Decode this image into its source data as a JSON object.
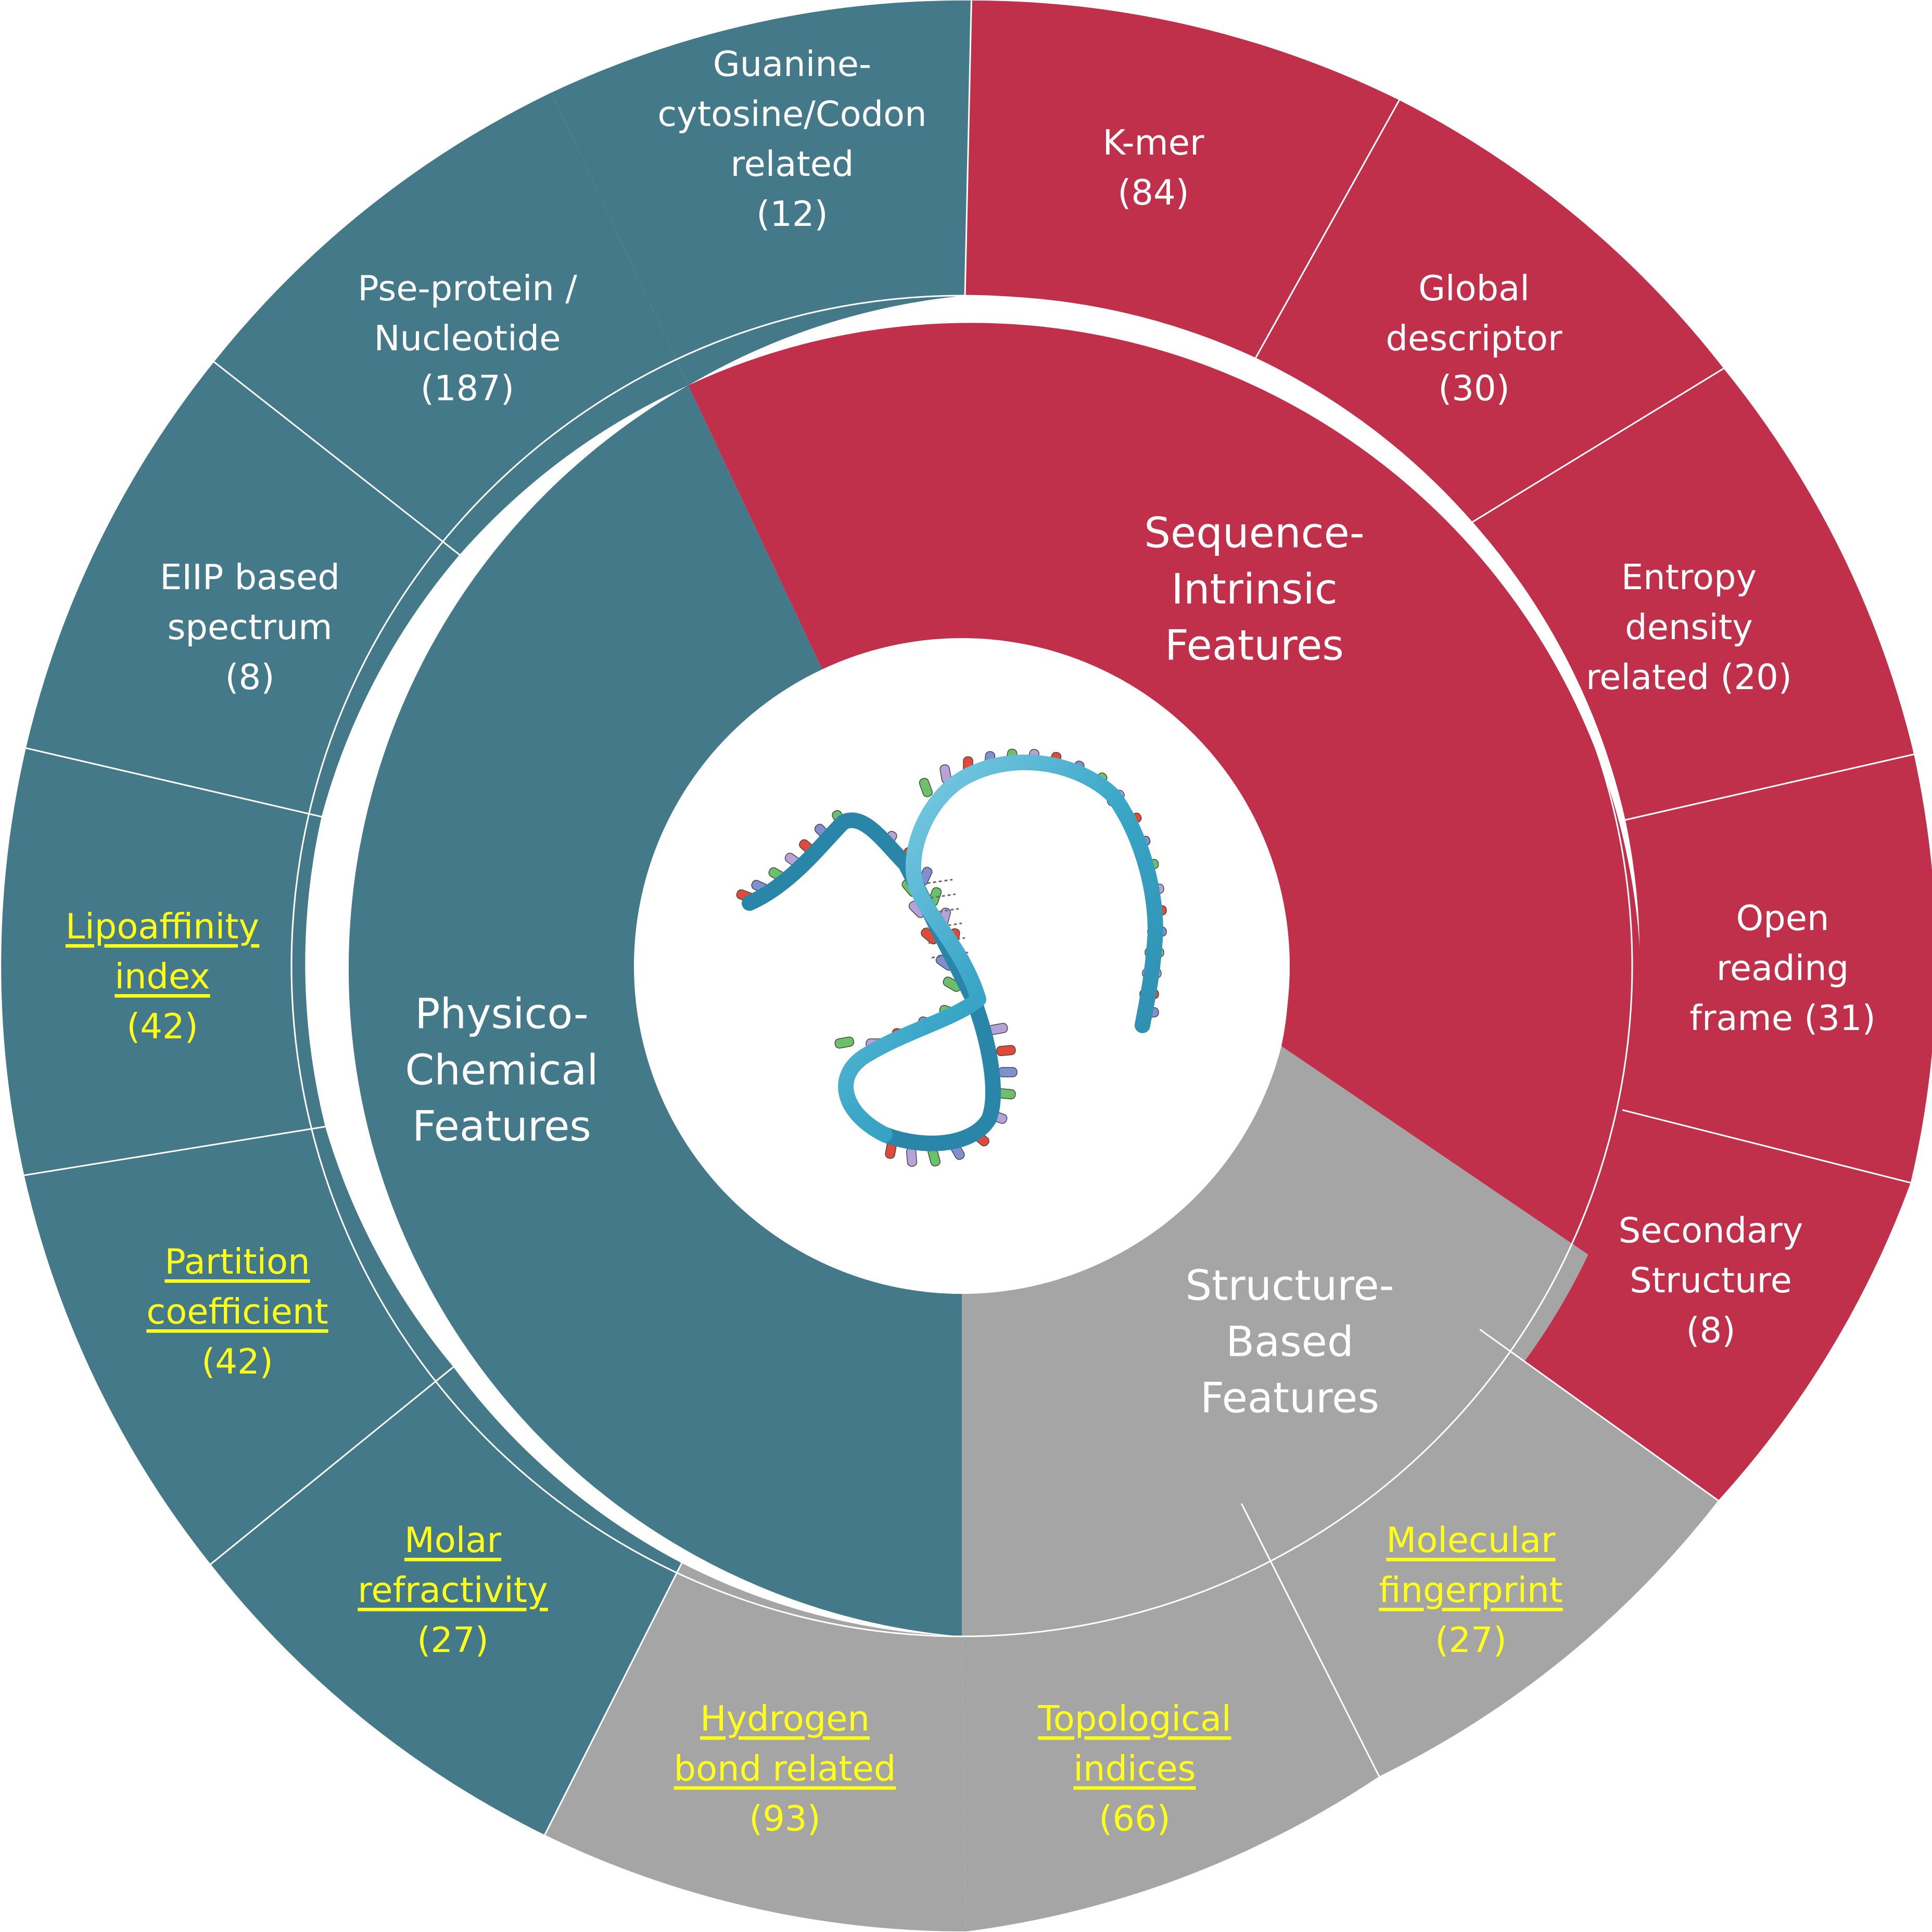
{
  "categories": [
    {
      "id": "sequence",
      "label_lines": [
        "Sequence-",
        "Intrinsic",
        "Features"
      ],
      "color": "#c1304a",
      "subcategories": [
        {
          "id": "gc-codon",
          "lines": [
            "Guanine-",
            "cytosine/Codon",
            "related",
            "(12)"
          ],
          "style": "normal"
        },
        {
          "id": "kmer",
          "lines": [
            "K-mer",
            "(84)"
          ],
          "style": "normal"
        },
        {
          "id": "global",
          "lines": [
            "Global",
            "descriptor",
            "(30)"
          ],
          "style": "normal"
        },
        {
          "id": "entropy",
          "lines": [
            "Entropy",
            "density",
            "related (20)"
          ],
          "style": "normal"
        },
        {
          "id": "orf",
          "lines": [
            "Open",
            "reading",
            "frame (31)"
          ],
          "style": "normal"
        }
      ]
    },
    {
      "id": "structure",
      "label_lines": [
        "Structure-",
        "Based",
        "Features"
      ],
      "color": "#a5a5a5",
      "subcategories": [
        {
          "id": "secondary",
          "lines": [
            "Secondary",
            "Structure",
            "(8)"
          ],
          "style": "normal"
        },
        {
          "id": "fingerprint",
          "lines": [
            "Molecular",
            "fingerprint",
            "(27)"
          ],
          "style": "highlight"
        },
        {
          "id": "topological",
          "lines": [
            "Topological",
            "indices",
            "(66)"
          ],
          "style": "highlight"
        }
      ]
    },
    {
      "id": "physico",
      "label_lines": [
        "Physico-",
        "Chemical",
        "Features"
      ],
      "color": "#44798a",
      "subcategories": [
        {
          "id": "hbond",
          "lines": [
            "Hydrogen",
            "bond related",
            "(93)"
          ],
          "style": "highlight"
        },
        {
          "id": "molar",
          "lines": [
            "Molar",
            "refractivity",
            "(27)"
          ],
          "style": "highlight"
        },
        {
          "id": "partition",
          "lines": [
            "Partition",
            "coefficient",
            "(42)"
          ],
          "style": "highlight"
        },
        {
          "id": "lipo",
          "lines": [
            "Lipoaffinity",
            "index",
            "(42)"
          ],
          "style": "highlight"
        },
        {
          "id": "eiip",
          "lines": [
            "EIIP based",
            "spectrum",
            "(8)"
          ],
          "style": "normal"
        },
        {
          "id": "pse",
          "lines": [
            "Pse-protein /",
            "Nucleotide",
            "(187)"
          ],
          "style": "normal"
        }
      ]
    }
  ],
  "colors": {
    "normal_text": "#ffffff",
    "highlight_text": "#ffff1a",
    "helix_ribbon": "#3aa6c8",
    "base_red": "#e04a3a",
    "base_blue": "#7f8fd0",
    "base_green": "#6cc06a",
    "base_purple": "#b5a2d6"
  },
  "center_icon": "rna-double-helix-icon"
}
